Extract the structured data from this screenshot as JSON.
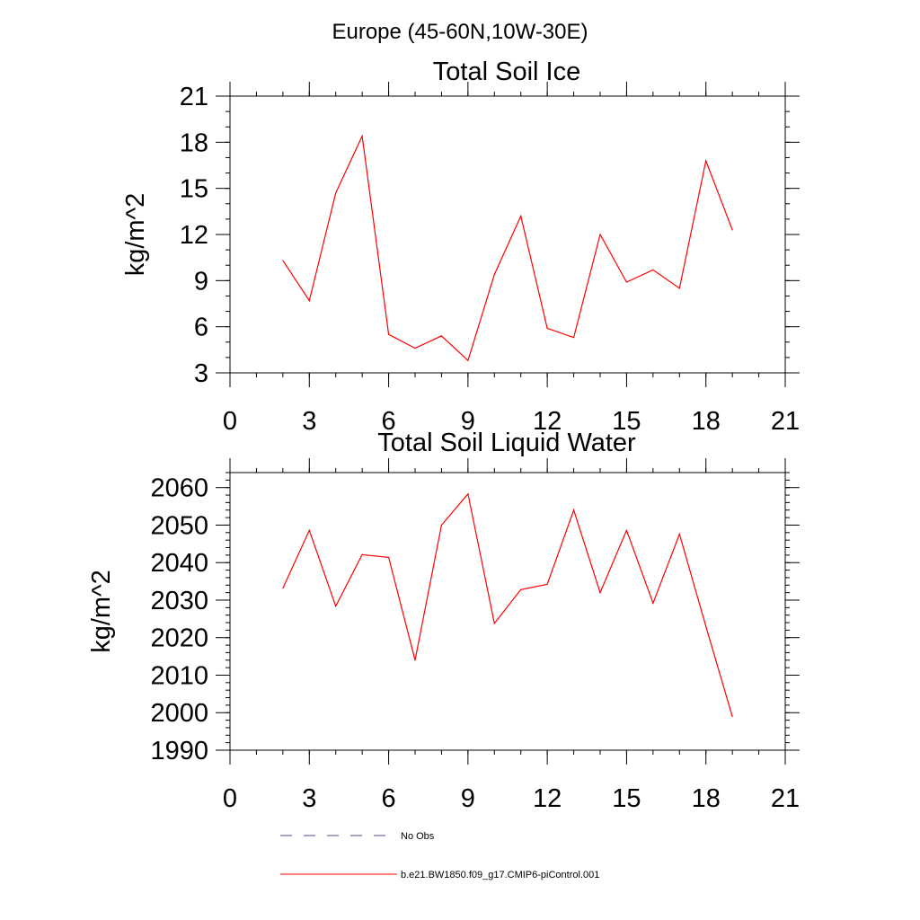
{
  "page": {
    "suptitle": "Europe (45-60N,10W-30E)"
  },
  "colors": {
    "model_line": "#ff0000",
    "obs_line": "#4a4a8a",
    "axis": "#000000"
  },
  "chart_data": [
    {
      "type": "line",
      "title": "Total Soil Ice",
      "xlabel": "",
      "ylabel": "kg/m^2",
      "xlim": [
        0,
        21
      ],
      "ylim": [
        3,
        21
      ],
      "xticks": [
        0,
        3,
        6,
        9,
        12,
        15,
        18,
        21
      ],
      "yticks": [
        3,
        6,
        9,
        12,
        15,
        18,
        21
      ],
      "x_minor_step": 1,
      "y_minor_step": 1,
      "grid": false,
      "series": [
        {
          "name": "b.e21.BW1850.f09_g17.CMIP6-piControl.001",
          "x": [
            2,
            3,
            4,
            5,
            6,
            7,
            8,
            9,
            10,
            11,
            12,
            13,
            14,
            15,
            16,
            17,
            18,
            19
          ],
          "y": [
            10.3,
            7.7,
            14.7,
            18.4,
            5.5,
            4.6,
            5.4,
            3.8,
            9.4,
            13.2,
            5.9,
            5.3,
            12.0,
            8.9,
            9.7,
            8.5,
            16.8,
            12.3
          ]
        }
      ]
    },
    {
      "type": "line",
      "title": "Total Soil Liquid Water",
      "xlabel": "",
      "ylabel": "kg/m^2",
      "xlim": [
        0,
        21
      ],
      "ylim": [
        1990,
        2064
      ],
      "xticks": [
        0,
        3,
        6,
        9,
        12,
        15,
        18,
        21
      ],
      "yticks": [
        1990,
        2000,
        2010,
        2020,
        2030,
        2040,
        2050,
        2060
      ],
      "x_minor_step": 1,
      "y_minor_step": 2,
      "grid": false,
      "series": [
        {
          "name": "b.e21.BW1850.f09_g17.CMIP6-piControl.001",
          "x": [
            2,
            3,
            4,
            5,
            6,
            7,
            8,
            9,
            10,
            11,
            12,
            13,
            14,
            15,
            16,
            17,
            18,
            19
          ],
          "y": [
            2033.2,
            2048.6,
            2028.4,
            2042.1,
            2041.4,
            2014.0,
            2050.0,
            2058.3,
            2023.8,
            2032.8,
            2034.2,
            2054.0,
            2032.0,
            2048.6,
            2029.2,
            2047.6,
            2023.0,
            1999.0
          ]
        }
      ]
    }
  ],
  "legend": {
    "placement": "bottom-left",
    "entries": [
      {
        "label": "No Obs",
        "style": "dashed",
        "color": "#4a4a8a"
      },
      {
        "label": "b.e21.BW1850.f09_g17.CMIP6-piControl.001",
        "style": "solid",
        "color": "#ff0000"
      }
    ]
  }
}
